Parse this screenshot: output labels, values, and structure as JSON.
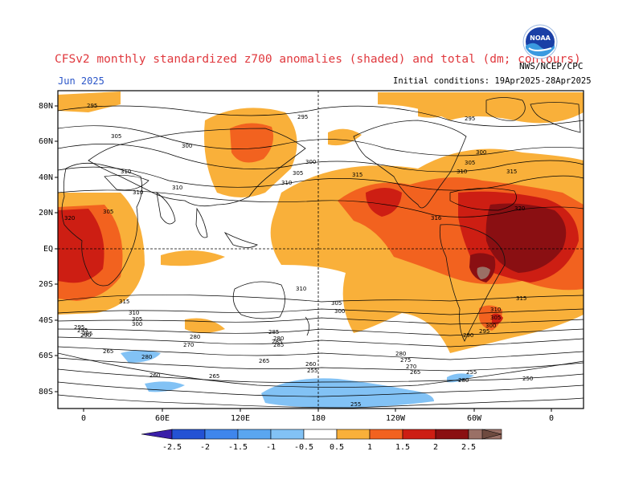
{
  "header": {
    "title": "CFSv2 monthly standardized z700 anomalies (shaded) and total (dm; contours)",
    "month": "Jun 2025",
    "initial_conditions": "Initial conditions: 19Apr2025-28Apr2025",
    "agency": "NWS/NCEP/CPC",
    "logo_text": "NOAA"
  },
  "axes": {
    "lat_labels": [
      "80N",
      "60N",
      "40N",
      "20N",
      "EQ",
      "20S",
      "40S",
      "60S",
      "80S"
    ],
    "lon_labels": [
      "0",
      "60E",
      "120E",
      "180",
      "120W",
      "60W",
      "0"
    ]
  },
  "colorbar": {
    "ticks": [
      "-2.5",
      "-2",
      "-1.5",
      "-1",
      "-0.5",
      "0.5",
      "1",
      "1.5",
      "2",
      "2.5"
    ],
    "colors": [
      "#3a1fa8",
      "#2352d4",
      "#3f86ec",
      "#82c2f5",
      "#ffffff",
      "#f9b03a",
      "#f2621f",
      "#cd1e13",
      "#8a0f12",
      "#9a7066",
      "#6e4a3f"
    ]
  },
  "contour_labels": [
    {
      "text": "295"
    },
    {
      "text": "295"
    },
    {
      "text": "295"
    },
    {
      "text": "305"
    },
    {
      "text": "300"
    },
    {
      "text": "310"
    },
    {
      "text": "310"
    },
    {
      "text": "310"
    },
    {
      "text": "305"
    },
    {
      "text": "310"
    },
    {
      "text": "300"
    },
    {
      "text": "315"
    },
    {
      "text": "310"
    },
    {
      "text": "305"
    },
    {
      "text": "300"
    },
    {
      "text": "315"
    },
    {
      "text": "320"
    },
    {
      "text": "316"
    },
    {
      "text": "320"
    },
    {
      "text": "310"
    },
    {
      "text": "315"
    },
    {
      "text": "305"
    },
    {
      "text": "300"
    },
    {
      "text": "295"
    },
    {
      "text": "310"
    },
    {
      "text": "305"
    },
    {
      "text": "300"
    },
    {
      "text": "295"
    },
    {
      "text": "290"
    },
    {
      "text": "285"
    },
    {
      "text": "315"
    },
    {
      "text": "310"
    },
    {
      "text": "305"
    },
    {
      "text": "300"
    },
    {
      "text": "295"
    },
    {
      "text": "285"
    },
    {
      "text": "280"
    },
    {
      "text": "270"
    },
    {
      "text": "285"
    },
    {
      "text": "280"
    },
    {
      "text": "285"
    },
    {
      "text": "265"
    },
    {
      "text": "280"
    },
    {
      "text": "265"
    },
    {
      "text": "260"
    },
    {
      "text": "265"
    },
    {
      "text": "260"
    },
    {
      "text": "255"
    },
    {
      "text": "280"
    },
    {
      "text": "275"
    },
    {
      "text": "270"
    },
    {
      "text": "265"
    },
    {
      "text": "255"
    },
    {
      "text": "290"
    },
    {
      "text": "280"
    },
    {
      "text": "255"
    },
    {
      "text": "250"
    },
    {
      "text": "305"
    }
  ]
}
